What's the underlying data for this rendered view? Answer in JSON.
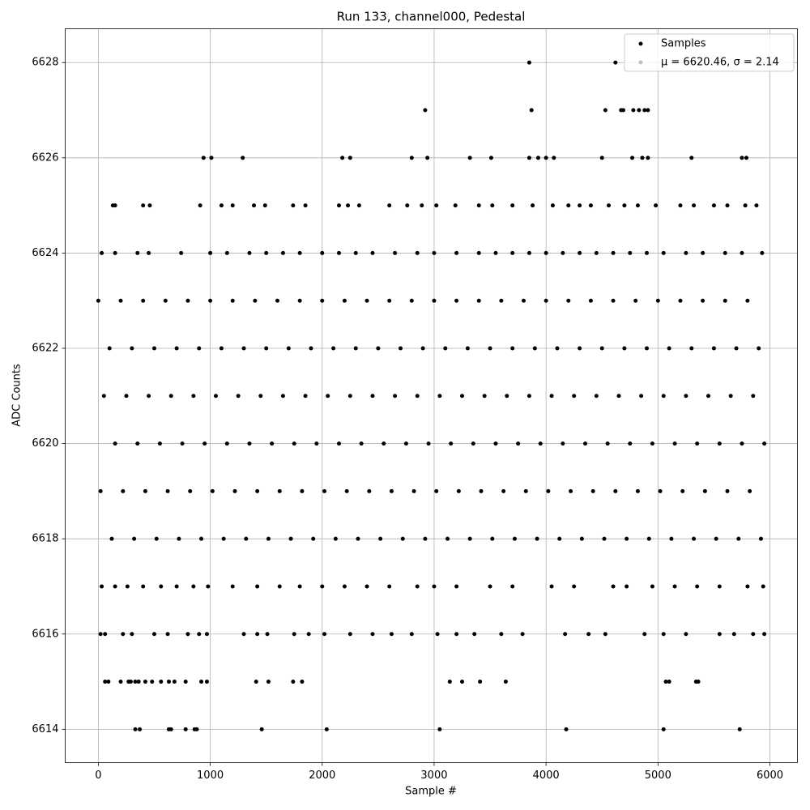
{
  "chart_data": {
    "type": "scatter",
    "title": "Run 133, channel000, Pedestal",
    "x_label": "Sample #",
    "y_label": "ADC Counts",
    "xlim": [
      -296,
      6246
    ],
    "ylim": [
      6613.3,
      6628.71
    ],
    "xticks": [
      0,
      1000,
      2000,
      3000,
      4000,
      5000,
      6000
    ],
    "yticks": [
      6614,
      6616,
      6618,
      6620,
      6622,
      6624,
      6626,
      6628
    ],
    "grid": true,
    "legend": "upper right",
    "series": [
      {
        "name": "Samples",
        "color": "#000000",
        "x": [
          3850,
          4620,
          2920,
          3870,
          4530,
          4670,
          4690,
          4780,
          4830,
          4880,
          4910,
          940,
          1010,
          1290,
          2180,
          2250,
          2800,
          2940,
          3320,
          3510,
          3850,
          3930,
          4000,
          4070,
          4500,
          4770,
          4860,
          4910,
          5300,
          5750,
          5790,
          130,
          150,
          400,
          460,
          910,
          1100,
          1200,
          1390,
          1490,
          1740,
          1850,
          2150,
          2230,
          2330,
          2600,
          2760,
          2890,
          3020,
          3190,
          3400,
          3520,
          3700,
          3880,
          4060,
          4200,
          4300,
          4400,
          4560,
          4700,
          4820,
          4980,
          5200,
          5320,
          5500,
          5620,
          5780,
          5880,
          30,
          150,
          350,
          450,
          740,
          1000,
          1150,
          1350,
          1500,
          1650,
          1800,
          2000,
          2150,
          2300,
          2450,
          2650,
          2850,
          3000,
          3200,
          3400,
          3550,
          3700,
          3850,
          4000,
          4150,
          4300,
          4450,
          4600,
          4750,
          4900,
          5050,
          5250,
          5400,
          5600,
          5750,
          5930,
          0,
          200,
          400,
          600,
          800,
          1000,
          1200,
          1400,
          1600,
          1800,
          2000,
          2200,
          2400,
          2600,
          2800,
          3000,
          3200,
          3400,
          3600,
          3800,
          4000,
          4200,
          4400,
          4600,
          4800,
          5000,
          5200,
          5400,
          5600,
          5800,
          100,
          300,
          500,
          700,
          900,
          1100,
          1300,
          1500,
          1700,
          1900,
          2100,
          2300,
          2500,
          2700,
          2900,
          3100,
          3300,
          3500,
          3700,
          3900,
          4100,
          4300,
          4500,
          4700,
          4900,
          5100,
          5300,
          5500,
          5700,
          5900,
          50,
          250,
          450,
          650,
          850,
          1050,
          1250,
          1450,
          1650,
          1850,
          2050,
          2250,
          2450,
          2650,
          2850,
          3050,
          3250,
          3450,
          3650,
          3850,
          4050,
          4250,
          4450,
          4650,
          4850,
          5050,
          5250,
          5450,
          5650,
          5850,
          150,
          350,
          550,
          750,
          950,
          1150,
          1350,
          1550,
          1750,
          1950,
          2150,
          2350,
          2550,
          2750,
          2950,
          3150,
          3350,
          3550,
          3750,
          3950,
          4150,
          4350,
          4550,
          4750,
          4950,
          5150,
          5350,
          5550,
          5750,
          5950,
          20,
          220,
          420,
          620,
          820,
          1020,
          1220,
          1420,
          1620,
          1820,
          2020,
          2220,
          2420,
          2620,
          2820,
          3020,
          3220,
          3420,
          3620,
          3820,
          4020,
          4220,
          4420,
          4620,
          4820,
          5020,
          5220,
          5420,
          5620,
          5820,
          120,
          320,
          520,
          720,
          920,
          1120,
          1320,
          1520,
          1720,
          1920,
          2120,
          2320,
          2520,
          2720,
          2920,
          3120,
          3320,
          3520,
          3720,
          3920,
          4120,
          4320,
          4520,
          4720,
          4920,
          5120,
          5320,
          5520,
          5720,
          5920,
          30,
          150,
          260,
          400,
          560,
          700,
          850,
          980,
          1200,
          1420,
          1620,
          1800,
          2000,
          2200,
          2400,
          2600,
          2850,
          3000,
          3200,
          3500,
          3700,
          4050,
          4250,
          4600,
          4720,
          4950,
          5150,
          5350,
          5550,
          5800,
          5940,
          20,
          60,
          220,
          300,
          500,
          620,
          800,
          900,
          970,
          1300,
          1420,
          1510,
          1750,
          1880,
          2020,
          2250,
          2450,
          2620,
          2800,
          3030,
          3200,
          3360,
          3600,
          3790,
          4170,
          4380,
          4530,
          4880,
          5050,
          5250,
          5550,
          5680,
          5850,
          5950,
          60,
          90,
          200,
          270,
          290,
          330,
          360,
          420,
          480,
          560,
          630,
          680,
          780,
          920,
          970,
          1410,
          1520,
          1740,
          1820,
          3140,
          3250,
          3410,
          3640,
          5070,
          5100,
          5340,
          5360,
          330,
          370,
          630,
          650,
          780,
          860,
          880,
          1460,
          2040,
          3050,
          4180,
          5050,
          5730
        ],
        "values": [
          6628,
          6628,
          6627,
          6627,
          6627,
          6627,
          6627,
          6627,
          6627,
          6627,
          6627,
          6626,
          6626,
          6626,
          6626,
          6626,
          6626,
          6626,
          6626,
          6626,
          6626,
          6626,
          6626,
          6626,
          6626,
          6626,
          6626,
          6626,
          6626,
          6626,
          6626,
          6625,
          6625,
          6625,
          6625,
          6625,
          6625,
          6625,
          6625,
          6625,
          6625,
          6625,
          6625,
          6625,
          6625,
          6625,
          6625,
          6625,
          6625,
          6625,
          6625,
          6625,
          6625,
          6625,
          6625,
          6625,
          6625,
          6625,
          6625,
          6625,
          6625,
          6625,
          6625,
          6625,
          6625,
          6625,
          6625,
          6625,
          6624,
          6624,
          6624,
          6624,
          6624,
          6624,
          6624,
          6624,
          6624,
          6624,
          6624,
          6624,
          6624,
          6624,
          6624,
          6624,
          6624,
          6624,
          6624,
          6624,
          6624,
          6624,
          6624,
          6624,
          6624,
          6624,
          6624,
          6624,
          6624,
          6624,
          6624,
          6624,
          6624,
          6624,
          6624,
          6624,
          6623,
          6623,
          6623,
          6623,
          6623,
          6623,
          6623,
          6623,
          6623,
          6623,
          6623,
          6623,
          6623,
          6623,
          6623,
          6623,
          6623,
          6623,
          6623,
          6623,
          6623,
          6623,
          6623,
          6623,
          6623,
          6623,
          6623,
          6623,
          6623,
          6623,
          6622,
          6622,
          6622,
          6622,
          6622,
          6622,
          6622,
          6622,
          6622,
          6622,
          6622,
          6622,
          6622,
          6622,
          6622,
          6622,
          6622,
          6622,
          6622,
          6622,
          6622,
          6622,
          6622,
          6622,
          6622,
          6622,
          6622,
          6622,
          6622,
          6622,
          6621,
          6621,
          6621,
          6621,
          6621,
          6621,
          6621,
          6621,
          6621,
          6621,
          6621,
          6621,
          6621,
          6621,
          6621,
          6621,
          6621,
          6621,
          6621,
          6621,
          6621,
          6621,
          6621,
          6621,
          6621,
          6621,
          6621,
          6621,
          6621,
          6621,
          6620,
          6620,
          6620,
          6620,
          6620,
          6620,
          6620,
          6620,
          6620,
          6620,
          6620,
          6620,
          6620,
          6620,
          6620,
          6620,
          6620,
          6620,
          6620,
          6620,
          6620,
          6620,
          6620,
          6620,
          6620,
          6620,
          6620,
          6620,
          6620,
          6620,
          6619,
          6619,
          6619,
          6619,
          6619,
          6619,
          6619,
          6619,
          6619,
          6619,
          6619,
          6619,
          6619,
          6619,
          6619,
          6619,
          6619,
          6619,
          6619,
          6619,
          6619,
          6619,
          6619,
          6619,
          6619,
          6619,
          6619,
          6619,
          6619,
          6619,
          6618,
          6618,
          6618,
          6618,
          6618,
          6618,
          6618,
          6618,
          6618,
          6618,
          6618,
          6618,
          6618,
          6618,
          6618,
          6618,
          6618,
          6618,
          6618,
          6618,
          6618,
          6618,
          6618,
          6618,
          6618,
          6618,
          6618,
          6618,
          6618,
          6618,
          6617,
          6617,
          6617,
          6617,
          6617,
          6617,
          6617,
          6617,
          6617,
          6617,
          6617,
          6617,
          6617,
          6617,
          6617,
          6617,
          6617,
          6617,
          6617,
          6617,
          6617,
          6617,
          6617,
          6617,
          6617,
          6617,
          6617,
          6617,
          6617,
          6617,
          6617,
          6616,
          6616,
          6616,
          6616,
          6616,
          6616,
          6616,
          6616,
          6616,
          6616,
          6616,
          6616,
          6616,
          6616,
          6616,
          6616,
          6616,
          6616,
          6616,
          6616,
          6616,
          6616,
          6616,
          6616,
          6616,
          6616,
          6616,
          6616,
          6616,
          6616,
          6616,
          6616,
          6616,
          6616,
          6615,
          6615,
          6615,
          6615,
          6615,
          6615,
          6615,
          6615,
          6615,
          6615,
          6615,
          6615,
          6615,
          6615,
          6615,
          6615,
          6615,
          6615,
          6615,
          6615,
          6615,
          6615,
          6615,
          6615,
          6615,
          6615,
          6615,
          6614,
          6614,
          6614,
          6614,
          6614,
          6614,
          6614,
          6614,
          6614,
          6614,
          6614,
          6614,
          6614
        ]
      },
      {
        "name": "μ = 6620.46, σ = 2.14",
        "color": "#c0c0c0",
        "x": [],
        "values": []
      }
    ]
  }
}
